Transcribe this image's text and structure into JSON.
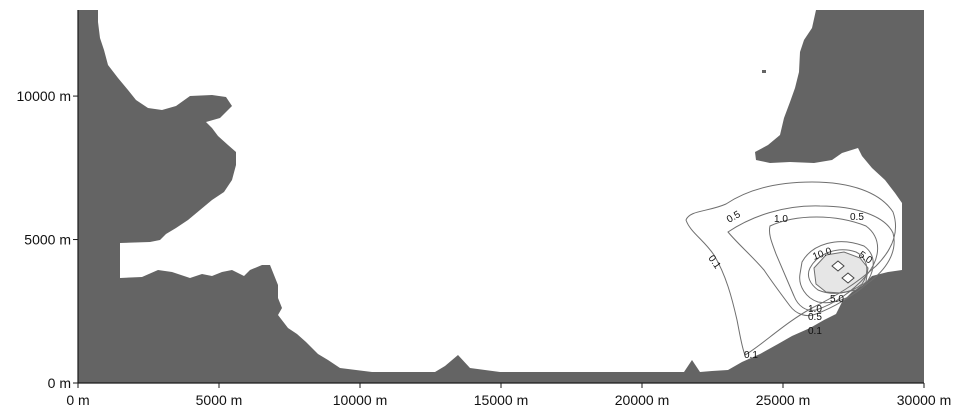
{
  "map": {
    "land_color": "#646464",
    "water_color": "#ffffff",
    "high_concentration_fill": "#e6e6e6",
    "contour_color": "#6f6f6f",
    "axis_color": "#1a1a1a",
    "y_axis": {
      "unit": "m",
      "range": [
        0,
        13000
      ],
      "ticks": [
        {
          "value": 0,
          "label": "0 m"
        },
        {
          "value": 5000,
          "label": "5000 m"
        },
        {
          "value": 10000,
          "label": "10000 m"
        }
      ]
    },
    "x_axis": {
      "unit": "m",
      "range": [
        0,
        30000
      ],
      "ticks": [
        {
          "value": 0,
          "label": "0 m"
        },
        {
          "value": 5000,
          "label": "5000 m"
        },
        {
          "value": 10000,
          "label": "10000 m"
        },
        {
          "value": 15000,
          "label": "15000 m"
        },
        {
          "value": 20000,
          "label": "20000 m"
        },
        {
          "value": 25000,
          "label": "25000 m"
        },
        {
          "value": 30000,
          "label": "30000 m"
        }
      ]
    },
    "contours": [
      {
        "level": 0.1,
        "labels": [
          "0.1",
          "0.1",
          "0.1"
        ]
      },
      {
        "level": 0.5,
        "labels": [
          "0.5",
          "0.5",
          "0.5"
        ]
      },
      {
        "level": 1.0,
        "labels": [
          "1.0",
          "1.0"
        ]
      },
      {
        "level": 5.0,
        "labels": [
          "5.0",
          "5.0"
        ]
      },
      {
        "level": 10.0,
        "labels": [
          "10.0"
        ]
      }
    ]
  }
}
